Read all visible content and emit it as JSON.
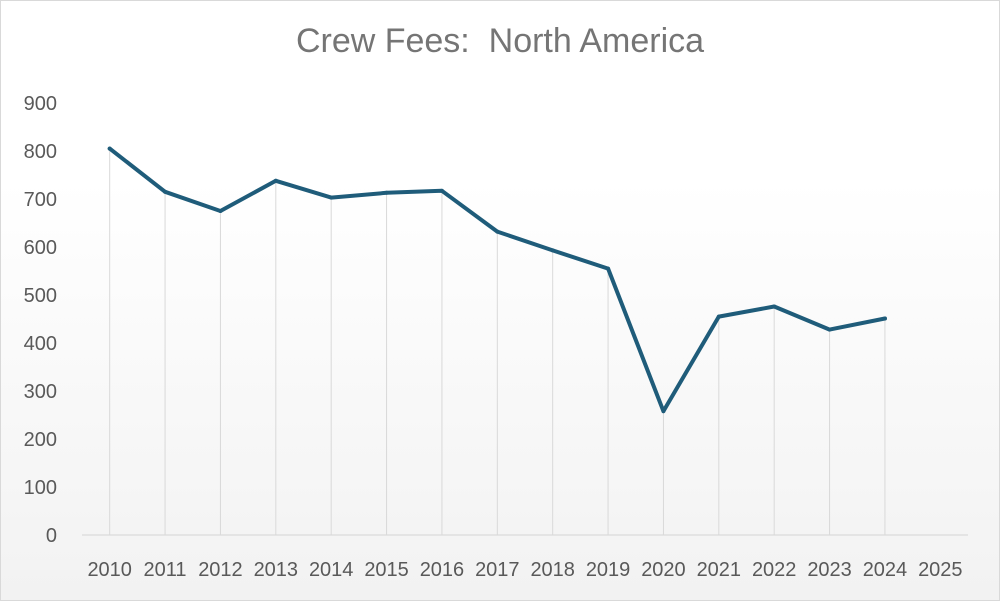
{
  "chart_data": {
    "type": "line",
    "title": "Crew Fees:  North America",
    "xlabel": "",
    "ylabel": "",
    "categories": [
      "2010",
      "2011",
      "2012",
      "2013",
      "2014",
      "2015",
      "2016",
      "2017",
      "2018",
      "2019",
      "2020",
      "2021",
      "2022",
      "2023",
      "2024",
      "2025"
    ],
    "series": [
      {
        "values": [
          805,
          715,
          675,
          738,
          703,
          713,
          717,
          632,
          593,
          555,
          258,
          455,
          476,
          428,
          451,
          null
        ],
        "color": "#1f5c7a"
      }
    ],
    "ylim": [
      0,
      900
    ],
    "yticks": [
      0,
      100,
      200,
      300,
      400,
      500,
      600,
      700,
      800,
      900
    ],
    "grid": "vertical drop lines",
    "legend": "none"
  }
}
